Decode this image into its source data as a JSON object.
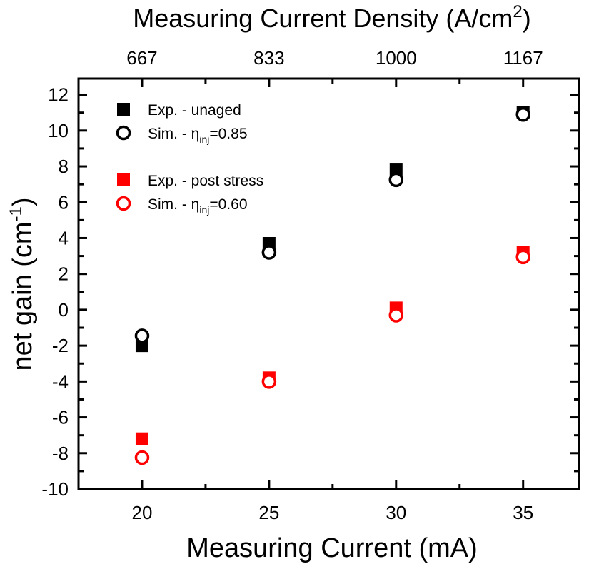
{
  "chart_data": {
    "type": "scatter",
    "xlabel": "Measuring Current (mA)",
    "ylabel": "net gain (cm",
    "ylabel_sup": "-1",
    "ylabel_end": ")",
    "top_xlabel": "Measuring Current Density (A/cm",
    "top_xlabel_sup": "2",
    "top_xlabel_end": ")",
    "xlim": [
      17.5,
      37.2
    ],
    "ylim": [
      -10,
      12.9
    ],
    "x_ticks": [
      20,
      25,
      30,
      35
    ],
    "x_tick_labels": [
      "20",
      "25",
      "30",
      "35"
    ],
    "top_tick_labels": [
      "667",
      "833",
      "1000",
      "1167"
    ],
    "y_ticks": [
      -10,
      -8,
      -6,
      -4,
      -2,
      0,
      2,
      4,
      6,
      8,
      10,
      12
    ],
    "y_tick_labels": [
      "-10",
      "-8",
      "-6",
      "-4",
      "-2",
      "0",
      "2",
      "4",
      "6",
      "8",
      "10",
      "12"
    ],
    "grid": false,
    "legend_position": "top-left",
    "x": [
      20,
      25,
      30,
      35
    ],
    "series": [
      {
        "name": "Exp. - unaged",
        "legend_main": "Exp. - unaged",
        "marker": "square",
        "color": "#000000",
        "values": [
          -2.0,
          3.7,
          7.8,
          11.0
        ]
      },
      {
        "name": "Sim. - ηinj=0.85",
        "legend_main": "Sim. - η",
        "legend_sub": "inj",
        "legend_end": "=0.85",
        "marker": "circle",
        "color": "#000000",
        "values": [
          -1.45,
          3.2,
          7.25,
          10.9
        ]
      },
      {
        "name": "Exp. - post stress",
        "legend_main": "Exp. - post stress",
        "marker": "square",
        "color": "#ff0000",
        "values": [
          -7.2,
          -3.8,
          0.1,
          3.2
        ]
      },
      {
        "name": "Sim. - ηinj=0.60",
        "legend_main": "Sim. - η",
        "legend_sub": "inj",
        "legend_end": "=0.60",
        "marker": "circle",
        "color": "#ff0000",
        "values": [
          -8.25,
          -4.0,
          -0.3,
          2.95
        ]
      }
    ]
  }
}
